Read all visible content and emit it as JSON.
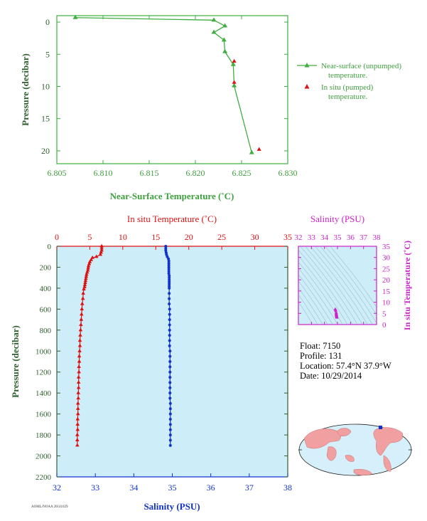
{
  "colors": {
    "green": "#3fae3f",
    "green_text": "#3f9f3f",
    "axis_dark": "#2f5f2f",
    "red": "#dd1111",
    "blue": "#1133cc",
    "magenta": "#cc22cc",
    "panel_bg": "#cdeef8",
    "pink": "#f06090"
  },
  "info": {
    "float": "Float:  7150",
    "profile": "Profile:  131",
    "location": "Location:  57.4°N  37.9°W",
    "date": "Date:  10/29/2014"
  },
  "footer": "AOML/NOAA 20141029",
  "chart_data": [
    {
      "type": "line",
      "xlabel": "Near-Surface Temperature (˚C)",
      "ylabel": "Pressure (decibar)",
      "xlim": [
        6.805,
        6.83
      ],
      "ylim": [
        22,
        -1
      ],
      "xticks": [
        "6.805",
        "6.810",
        "6.815",
        "6.820",
        "6.825",
        "6.830"
      ],
      "yticks": [
        "0",
        "5",
        "10",
        "15",
        "20"
      ],
      "series": [
        {
          "name": "Near-surface (unpumped) temperature.",
          "x": [
            6.807,
            6.822,
            6.8232,
            6.822,
            6.8231,
            6.8232,
            6.8241,
            6.8242,
            6.8261
          ],
          "y": [
            -0.7,
            -0.3,
            0.6,
            1.6,
            2.8,
            4.6,
            6.6,
            9.9,
            20.3
          ]
        },
        {
          "name": "In situ (pumped) temperature.",
          "x": [
            6.8242,
            6.8242,
            6.8269
          ],
          "y": [
            6.1,
            9.4,
            19.8
          ]
        }
      ],
      "legend": [
        "Near-surface (unpumped)",
        "temperature.",
        "In situ (pumped)",
        "temperature."
      ]
    },
    {
      "type": "line",
      "top_axis_label": "In situ Temperature (˚C)",
      "bottom_axis_label": "Salinity (PSU)",
      "ylabel": "Pressure (decibar)",
      "temperature_range": [
        0,
        35
      ],
      "salinity_range": [
        32,
        38
      ],
      "pressure_range": [
        0,
        2200
      ],
      "temp_ticks": [
        "0",
        "5",
        "10",
        "15",
        "20",
        "25",
        "30",
        "35"
      ],
      "sal_ticks": [
        "32",
        "33",
        "34",
        "35",
        "36",
        "37",
        "38"
      ],
      "p_ticks": [
        "0",
        "200",
        "400",
        "600",
        "800",
        "1000",
        "1200",
        "1400",
        "1600",
        "1800",
        "2000",
        "2200"
      ],
      "temperature": {
        "p": [
          0,
          20,
          40,
          60,
          80,
          100,
          110,
          130,
          150,
          170,
          190,
          210,
          230,
          250,
          270,
          290,
          310,
          330,
          350,
          370,
          390,
          410,
          450,
          500,
          550,
          600,
          650,
          700,
          750,
          800,
          850,
          900,
          950,
          1000,
          1050,
          1100,
          1150,
          1200,
          1250,
          1300,
          1350,
          1400,
          1450,
          1500,
          1550,
          1600,
          1650,
          1700,
          1750,
          1800,
          1850,
          1900
        ],
        "t": [
          6.8,
          6.8,
          6.8,
          6.7,
          6.6,
          6.0,
          5.4,
          5.2,
          5.0,
          4.9,
          4.8,
          4.75,
          4.7,
          4.6,
          4.5,
          4.45,
          4.4,
          4.35,
          4.3,
          4.25,
          4.2,
          4.1,
          4.0,
          3.95,
          3.85,
          3.8,
          3.75,
          3.7,
          3.65,
          3.6,
          3.55,
          3.5,
          3.5,
          3.45,
          3.4,
          3.4,
          3.35,
          3.35,
          3.3,
          3.3,
          3.3,
          3.25,
          3.25,
          3.2,
          3.2,
          3.2,
          3.15,
          3.15,
          3.15,
          3.1,
          3.1,
          3.1
        ]
      },
      "salinity": {
        "p": [
          0,
          20,
          40,
          60,
          80,
          100,
          120,
          140,
          160,
          180,
          200,
          220,
          240,
          260,
          280,
          300,
          320,
          340,
          360,
          380,
          400,
          450,
          500,
          550,
          600,
          650,
          700,
          750,
          800,
          850,
          900,
          950,
          1000,
          1050,
          1100,
          1150,
          1200,
          1250,
          1300,
          1350,
          1400,
          1450,
          1500,
          1550,
          1600,
          1650,
          1700,
          1750,
          1800,
          1850,
          1900
        ],
        "s": [
          34.83,
          34.83,
          34.83,
          34.84,
          34.85,
          34.87,
          34.9,
          34.91,
          34.91,
          34.91,
          34.91,
          34.91,
          34.91,
          34.91,
          34.92,
          34.92,
          34.92,
          34.92,
          34.92,
          34.92,
          34.92,
          34.92,
          34.92,
          34.92,
          34.93,
          34.93,
          34.93,
          34.93,
          34.93,
          34.93,
          34.93,
          34.93,
          34.94,
          34.94,
          34.94,
          34.94,
          34.94,
          34.94,
          34.94,
          34.94,
          34.94,
          34.94,
          34.95,
          34.95,
          34.95,
          34.95,
          34.95,
          34.95,
          34.95,
          34.95,
          34.95
        ]
      }
    },
    {
      "type": "scatter",
      "title": "Salinity (PSU)",
      "ylabel": "In situ Temperature (˚C)",
      "xlim": [
        32,
        38
      ],
      "ylim": [
        0,
        35
      ],
      "xticks": [
        "32",
        "33",
        "34",
        "35",
        "36",
        "37",
        "38"
      ],
      "yticks": [
        "0",
        "5",
        "10",
        "15",
        "20",
        "25",
        "30",
        "35"
      ],
      "points": {
        "s": [
          34.83,
          34.85,
          34.87,
          34.9,
          34.91,
          34.91,
          34.92,
          34.92,
          34.93,
          34.94,
          34.95
        ],
        "t": [
          6.8,
          6.6,
          6.0,
          5.2,
          4.8,
          4.5,
          4.2,
          3.9,
          3.6,
          3.4,
          3.1
        ]
      }
    }
  ]
}
